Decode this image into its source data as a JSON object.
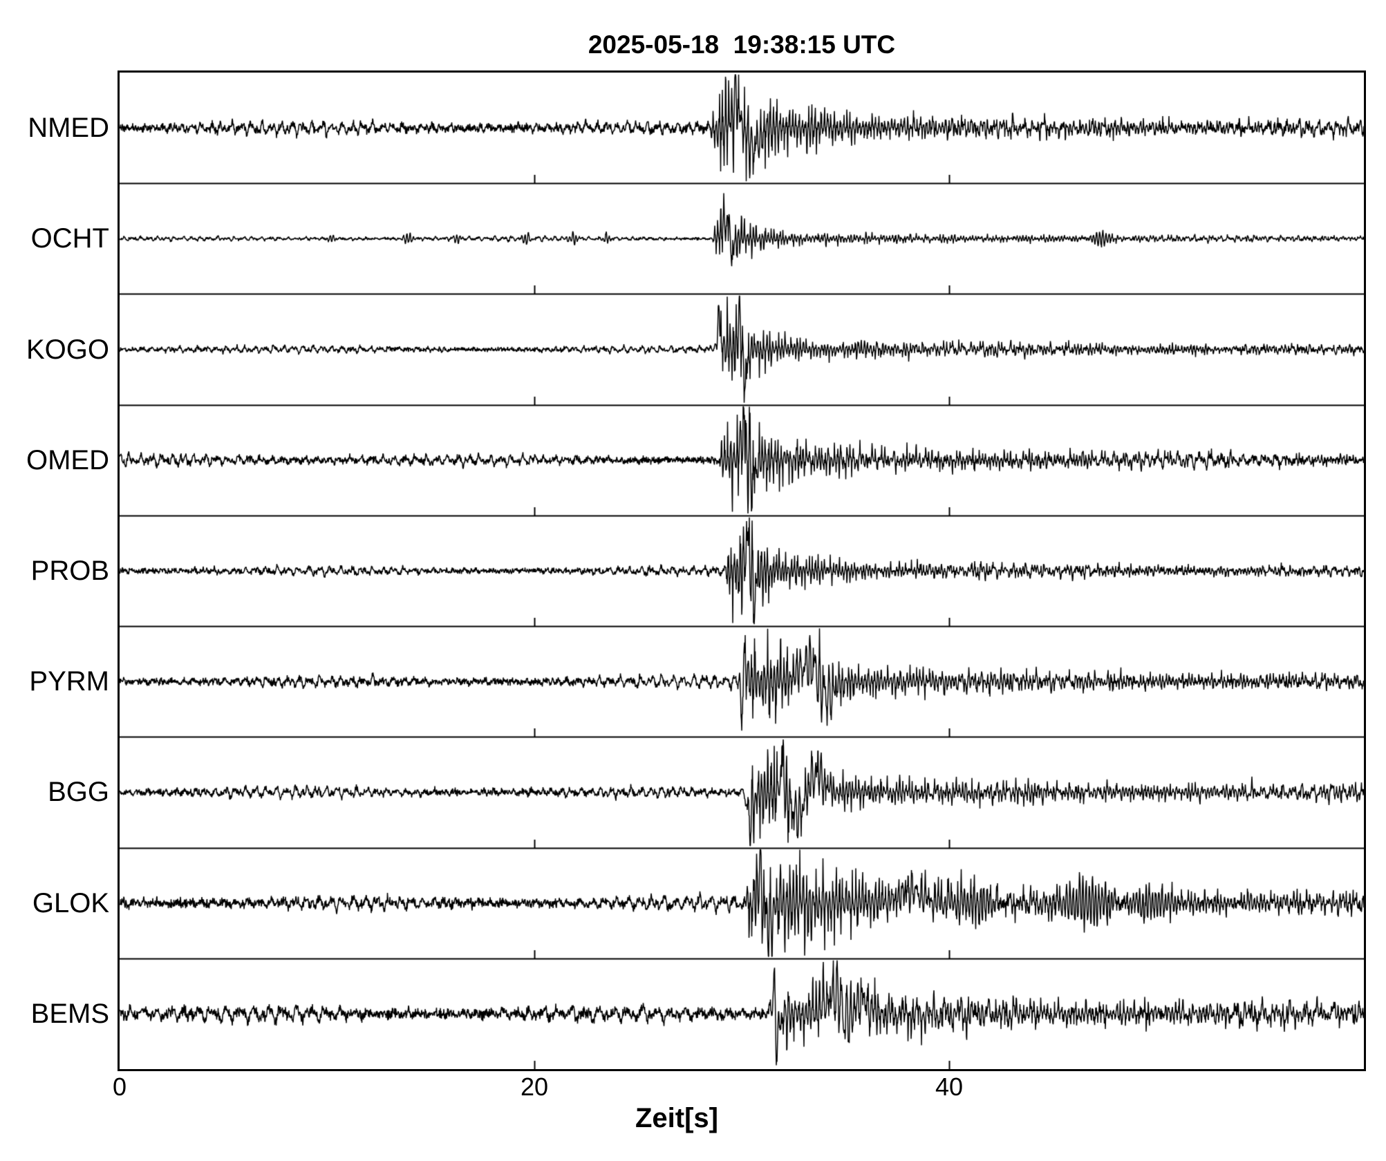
{
  "page": {
    "background_color": "#ffffff",
    "foreground_color": "#000000"
  },
  "chart_data": {
    "type": "line",
    "subtype": "seismogram-multitrace",
    "title": "2025-05-18  19:38:15 UTC",
    "xlabel": "Zeit[s]",
    "x_range_s": [
      0,
      60
    ],
    "x_ticks": [
      {
        "value": 0,
        "label": "0"
      },
      {
        "value": 20,
        "label": "20"
      },
      {
        "value": 40,
        "label": "40"
      }
    ],
    "grid": "row-separators-only",
    "legend": "none",
    "stations": [
      "NMED",
      "OCHT",
      "KOGO",
      "OMED",
      "PROB",
      "PYRM",
      "BGG",
      "GLOK",
      "BEMS"
    ],
    "event_onset_s": 28.5,
    "series": [
      {
        "name": "NMED",
        "noise_amp": 8.0,
        "noise_freqs": [
          2.1,
          3.4,
          5.0
        ],
        "onset_s": 28.5,
        "rise_s": 0.45,
        "peak_amp": 60,
        "decay_s": 2.4,
        "burst_freq": 6.5,
        "coda_amp": 11,
        "coda_decay_s": 30,
        "spikes": [
          {
            "t": 29.7,
            "amp": 74,
            "w": 0.22
          },
          {
            "t": 30.6,
            "amp": -55,
            "w": 0.35
          }
        ],
        "blips": []
      },
      {
        "name": "OCHT",
        "noise_amp": 2.7,
        "noise_freqs": [
          2.4,
          3.8,
          5.6
        ],
        "onset_s": 28.6,
        "rise_s": 0.3,
        "peak_amp": 42,
        "decay_s": 1.3,
        "burst_freq": 7.0,
        "coda_amp": 5,
        "coda_decay_s": 25,
        "spikes": [
          {
            "t": 29.35,
            "amp": 58,
            "w": 0.3
          },
          {
            "t": 29.55,
            "amp": -74,
            "w": 0.16
          }
        ],
        "blips": [
          {
            "t": 10.2,
            "amp": 5,
            "w": 0.2
          },
          {
            "t": 13.9,
            "amp": 7,
            "w": 0.25
          },
          {
            "t": 16.3,
            "amp": 6,
            "w": 0.2
          },
          {
            "t": 19.6,
            "amp": 9,
            "w": 0.18
          },
          {
            "t": 21.9,
            "amp": 8,
            "w": 0.22
          },
          {
            "t": 23.5,
            "amp": 7,
            "w": 0.2
          },
          {
            "t": 47.3,
            "amp": 8,
            "w": 0.5
          }
        ]
      },
      {
        "name": "KOGO",
        "noise_amp": 4.5,
        "noise_freqs": [
          2.2,
          3.6,
          5.2
        ],
        "onset_s": 28.75,
        "rise_s": 0.35,
        "peak_amp": 50,
        "decay_s": 1.7,
        "burst_freq": 6.8,
        "coda_amp": 8,
        "coda_decay_s": 28,
        "spikes": [
          {
            "t": 28.9,
            "amp": 62,
            "w": 0.14
          },
          {
            "t": 29.9,
            "amp": 74,
            "w": 0.18
          },
          {
            "t": 30.15,
            "amp": -74,
            "w": 0.18
          }
        ],
        "blips": []
      },
      {
        "name": "OMED",
        "noise_amp": 7.0,
        "noise_freqs": [
          1.9,
          3.2,
          4.8
        ],
        "onset_s": 28.9,
        "rise_s": 0.5,
        "peak_amp": 56,
        "decay_s": 2.1,
        "burst_freq": 6.6,
        "coda_amp": 10,
        "coda_decay_s": 30,
        "spikes": [
          {
            "t": 30.15,
            "amp": 74,
            "w": 0.28
          },
          {
            "t": 30.5,
            "amp": -70,
            "w": 0.22
          }
        ],
        "blips": []
      },
      {
        "name": "PROB",
        "noise_amp": 5.5,
        "noise_freqs": [
          2.0,
          3.3,
          5.4
        ],
        "onset_s": 29.2,
        "rise_s": 0.4,
        "peak_amp": 58,
        "decay_s": 1.8,
        "burst_freq": 6.9,
        "coda_amp": 8,
        "coda_decay_s": 26,
        "spikes": [
          {
            "t": 30.3,
            "amp": 76,
            "w": 0.22
          },
          {
            "t": 30.62,
            "amp": -72,
            "w": 0.2
          }
        ],
        "blips": []
      },
      {
        "name": "PYRM",
        "noise_amp": 7.0,
        "noise_freqs": [
          2.0,
          3.1,
          4.6
        ],
        "onset_s": 29.9,
        "rise_s": 0.5,
        "peak_amp": 42,
        "decay_s": 3.0,
        "burst_freq": 6.4,
        "coda_amp": 11,
        "coda_decay_s": 32,
        "spikes": [
          {
            "t": 30.0,
            "amp": -76,
            "w": 0.14
          },
          {
            "t": 30.12,
            "amp": 56,
            "w": 0.2
          },
          {
            "t": 33.3,
            "amp": 52,
            "w": 0.7
          },
          {
            "t": 34.1,
            "amp": -55,
            "w": 0.5
          }
        ],
        "blips": []
      },
      {
        "name": "BGG",
        "noise_amp": 6.5,
        "noise_freqs": [
          2.1,
          3.4,
          5.0
        ],
        "onset_s": 30.15,
        "rise_s": 0.5,
        "peak_amp": 46,
        "decay_s": 2.6,
        "burst_freq": 6.6,
        "coda_amp": 11,
        "coda_decay_s": 34,
        "spikes": [
          {
            "t": 30.4,
            "amp": -68,
            "w": 0.2
          },
          {
            "t": 31.95,
            "amp": 77,
            "w": 0.13
          },
          {
            "t": 32.7,
            "amp": -58,
            "w": 0.45
          },
          {
            "t": 33.6,
            "amp": 50,
            "w": 0.5
          }
        ],
        "blips": []
      },
      {
        "name": "GLOK",
        "noise_amp": 9.0,
        "noise_freqs": [
          1.8,
          3.0,
          4.7
        ],
        "onset_s": 30.1,
        "rise_s": 0.5,
        "peak_amp": 58,
        "decay_s": 3.2,
        "burst_freq": 6.3,
        "coda_amp": 15,
        "coda_decay_s": 45,
        "spikes": [
          {
            "t": 30.9,
            "amp": 76,
            "w": 0.25
          },
          {
            "t": 31.25,
            "amp": -72,
            "w": 0.25
          },
          {
            "t": 38.2,
            "amp": 30,
            "w": 0.8
          }
        ],
        "blips": [
          {
            "t": 41.5,
            "amp": 14,
            "w": 1.5
          },
          {
            "t": 46.9,
            "amp": 24,
            "w": 1.6
          },
          {
            "t": 49.5,
            "amp": 16,
            "w": 1.2
          }
        ]
      },
      {
        "name": "BEMS",
        "noise_amp": 10.5,
        "noise_freqs": [
          1.5,
          2.4,
          3.8
        ],
        "onset_s": 31.4,
        "rise_s": 0.6,
        "peak_amp": 34,
        "decay_s": 3.2,
        "burst_freq": 6.0,
        "coda_amp": 14,
        "coda_decay_s": 40,
        "spikes": [
          {
            "t": 31.55,
            "amp": 76,
            "w": 0.16
          },
          {
            "t": 31.7,
            "amp": -70,
            "w": 0.2
          },
          {
            "t": 34.6,
            "amp": 62,
            "w": 0.55
          },
          {
            "t": 35.15,
            "amp": -68,
            "w": 0.45
          },
          {
            "t": 35.6,
            "amp": 58,
            "w": 0.5
          }
        ],
        "blips": []
      }
    ]
  }
}
